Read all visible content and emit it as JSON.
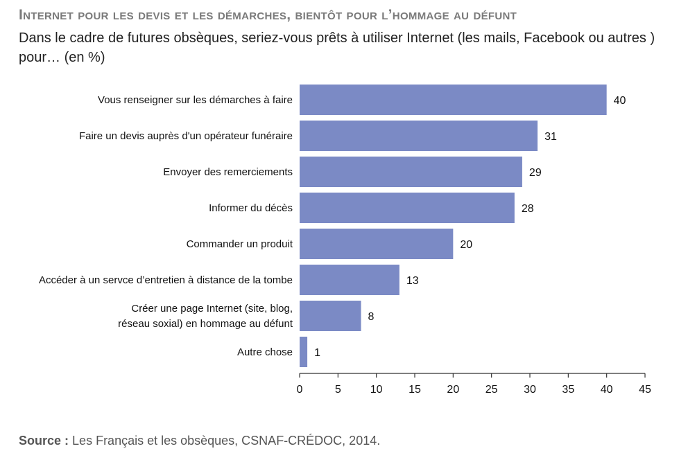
{
  "header": {
    "title": "Internet  pour les devis et les démarches, bientôt pour l’hommage au défunt",
    "subtitle": "Dans le cadre de futures obsèques, seriez-vous prêts à utiliser Internet (les mails, Facebook ou autres ) pour… (en %)"
  },
  "footer": {
    "source_label": "Source :",
    "source_text": "Les Français et les obsèques, CSNAF-CRÉDOC, 2014."
  },
  "chart_data": {
    "type": "bar",
    "orientation": "horizontal",
    "categories": [
      [
        "Vous renseigner sur les démarches à faire"
      ],
      [
        "Faire un devis auprès d'un opérateur funéraire"
      ],
      [
        "Envoyer des remerciements"
      ],
      [
        "Informer du décès"
      ],
      [
        "Commander un produit"
      ],
      [
        "Accéder à un servce d’entretien à distance de la tombe"
      ],
      [
        "Créer une page Internet (site, blog,",
        "réseau soxial) en hommage au défunt"
      ],
      [
        "Autre chose"
      ]
    ],
    "values": [
      40,
      31,
      29,
      28,
      20,
      13,
      8,
      1
    ],
    "xlim": [
      0,
      45
    ],
    "xticks": [
      0,
      5,
      10,
      15,
      20,
      25,
      30,
      35,
      40,
      45
    ],
    "bar_color": "#7b8ac5",
    "grid": false,
    "data_labels": true
  }
}
